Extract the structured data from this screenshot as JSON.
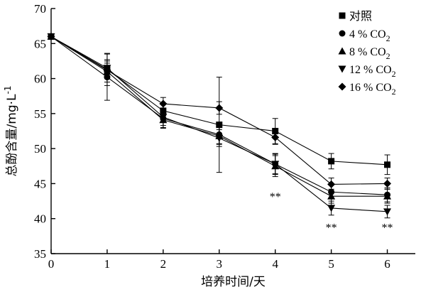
{
  "chart_data": {
    "type": "line",
    "title": "",
    "xlabel": "培养时间/天",
    "ylabel": "总酚含量/mg·L⁻¹",
    "ylabel_parts": {
      "main": "总酚含量/mg·L",
      "sup": "-1"
    },
    "xlim": [
      0,
      6.5
    ],
    "ylim": [
      35,
      70
    ],
    "x_ticks": [
      0,
      1,
      2,
      3,
      4,
      5,
      6
    ],
    "y_ticks": [
      35,
      40,
      45,
      50,
      55,
      60,
      65,
      70
    ],
    "legend_position": "top-right",
    "grid": false,
    "x": [
      0,
      1,
      2,
      3,
      4,
      5,
      6
    ],
    "series": [
      {
        "name": "对照",
        "name_main": "对照",
        "name_sub": "",
        "marker": "square",
        "values": [
          66,
          61.3,
          55.4,
          53.4,
          52.5,
          48.2,
          47.7
        ],
        "errors": [
          0.3,
          2.3,
          1.0,
          6.8,
          1.8,
          1.1,
          1.4
        ]
      },
      {
        "name": "4 % CO2",
        "name_main": "4 % CO",
        "name_sub": "2",
        "marker": "circle",
        "values": [
          66,
          60.2,
          54.3,
          52.0,
          47.8,
          43.8,
          43.4
        ],
        "errors": [
          0.3,
          3.3,
          1.3,
          1.3,
          1.5,
          1.0,
          1.0
        ]
      },
      {
        "name": "8 % CO2",
        "name_main": "8 % CO",
        "name_sub": "2",
        "marker": "triangle-up",
        "values": [
          66,
          61.0,
          54.1,
          51.8,
          47.5,
          43.2,
          43.2
        ],
        "errors": [
          0.3,
          1.5,
          1.2,
          1.2,
          1.5,
          1.0,
          1.0
        ]
      },
      {
        "name": "12 % CO2",
        "name_main": "12 % CO",
        "name_sub": "2",
        "marker": "triangle-down",
        "values": [
          66,
          61.5,
          54.5,
          51.5,
          47.8,
          41.5,
          41.0
        ],
        "errors": [
          0.3,
          1.2,
          1.2,
          1.2,
          1.4,
          1.0,
          0.9
        ]
      },
      {
        "name": "16 % CO2",
        "name_main": "16 % CO",
        "name_sub": "2",
        "marker": "diamond",
        "values": [
          66,
          61.2,
          56.4,
          55.8,
          51.6,
          44.9,
          45.0
        ],
        "errors": [
          0.3,
          1.0,
          0.9,
          0.9,
          1.0,
          0.9,
          0.8
        ]
      }
    ],
    "annotations": [
      {
        "x": 4,
        "y": 43.2,
        "text": "**"
      },
      {
        "x": 5,
        "y": 38.8,
        "text": "**"
      },
      {
        "x": 6,
        "y": 38.8,
        "text": "**"
      }
    ]
  }
}
